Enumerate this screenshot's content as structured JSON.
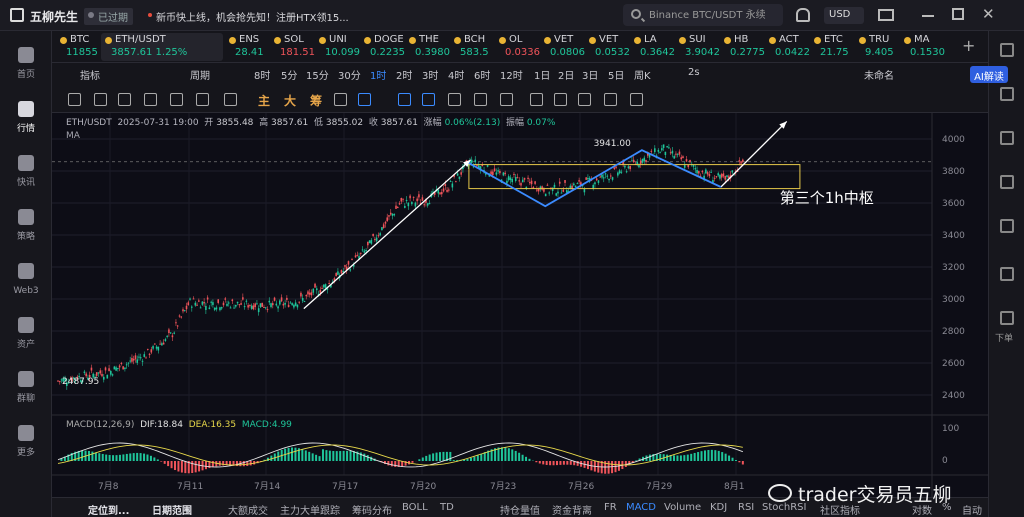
{
  "app": {
    "title": "五柳先生",
    "expired": "已过期",
    "news": "新币快上线，机会抢先知！注册HTX领15...",
    "search_placeholder": "Binance BTC/USDT 永续",
    "currency": "USD"
  },
  "sidebar": [
    {
      "label": "首页",
      "icon": "home-icon"
    },
    {
      "label": "行情",
      "icon": "chart-bars-icon",
      "active": true
    },
    {
      "label": "快讯",
      "icon": "news-icon"
    },
    {
      "label": "策略",
      "icon": "robot-icon"
    },
    {
      "label": "Web3",
      "icon": "web3-icon"
    },
    {
      "label": "资产",
      "icon": "wallet-icon"
    },
    {
      "label": "群聊",
      "icon": "chat-group-icon"
    },
    {
      "label": "更多",
      "icon": "grid-more-icon"
    }
  ],
  "rightbar": {
    "label": "下单"
  },
  "tickers": [
    {
      "sym": "BTC",
      "price": "11855",
      "dir": "up"
    },
    {
      "sym": "ETH/USDT",
      "price": "3857.61  1.25%",
      "dir": "up",
      "active": true
    },
    {
      "sym": "ENS",
      "price": "28.41",
      "dir": "up"
    },
    {
      "sym": "SOL",
      "price": "181.51",
      "dir": "dn"
    },
    {
      "sym": "UNI",
      "price": "10.099",
      "dir": "up"
    },
    {
      "sym": "DOGE",
      "price": "0.2235",
      "dir": "up"
    },
    {
      "sym": "THE",
      "price": "0.3980",
      "dir": "up"
    },
    {
      "sym": "BCH",
      "price": "583.5",
      "dir": "up"
    },
    {
      "sym": "OL",
      "price": "0.0336",
      "dir": "dn"
    },
    {
      "sym": "VET",
      "price": "0.0806",
      "dir": "up"
    },
    {
      "sym": "VET",
      "price": "0.0532",
      "dir": "up"
    },
    {
      "sym": "LA",
      "price": "0.3642",
      "dir": "up"
    },
    {
      "sym": "SUI",
      "price": "3.9042",
      "dir": "up"
    },
    {
      "sym": "HB",
      "price": "0.2775",
      "dir": "up"
    },
    {
      "sym": "ACT",
      "price": "0.0422",
      "dir": "up"
    },
    {
      "sym": "ETC",
      "price": "21.75",
      "dir": "up"
    },
    {
      "sym": "TRU",
      "price": "9.405",
      "dir": "up"
    },
    {
      "sym": "MA",
      "price": "0.1530",
      "dir": "up"
    }
  ],
  "toolbar": {
    "items": [
      "指标",
      "周期",
      "8时",
      "5分",
      "15分",
      "30分",
      "1时",
      "2时",
      "3时",
      "4时",
      "6时",
      "12时",
      "1日",
      "2日",
      "3日",
      "5日",
      "周K",
      "2s",
      "未命名"
    ],
    "active": "1时",
    "ai": "AI解读"
  },
  "drawbar": {
    "labels": [
      "主",
      "大",
      "筹"
    ]
  },
  "chart": {
    "legend": {
      "pair": "ETH/USDT",
      "time": "2025-07-31 19:00",
      "open_label": "开",
      "open": "3855.48",
      "high_label": "高",
      "high": "3857.61",
      "low_label": "低",
      "low": "3855.02",
      "close_label": "收",
      "close": "3857.61",
      "chg_label": "涨幅",
      "chg": "0.06%(2.13)",
      "amp_label": "振幅",
      "amp": "0.07%"
    },
    "ma": "MA",
    "annotation": "第三个1h中枢",
    "high_label": "3941.00",
    "low_label": "2487.95",
    "macd": {
      "params": "MACD(12,26,9)",
      "dif": "DIF:18.84",
      "dea": "DEA:16.35",
      "macd": "MACD:4.99"
    }
  },
  "chart_data": {
    "type": "candlestick",
    "x_ticks": [
      "7月8",
      "7月11",
      "7月14",
      "7月17",
      "7月20",
      "7月23",
      "7月26",
      "7月29",
      "8月1"
    ],
    "y_ticks": [
      2400,
      2600,
      2800,
      3000,
      3200,
      3400,
      3600,
      3800,
      4000
    ],
    "ylim": [
      2300,
      4100
    ],
    "current_price": 3857.61,
    "high": 3941.0,
    "low": 2487.95,
    "zhongshu_box": [
      3690,
      3840
    ],
    "macd_ticks": [
      0.0,
      100.0
    ],
    "trend": [
      {
        "x": 0.0,
        "y": 2487.95
      },
      {
        "x": 0.06,
        "y": 2550
      },
      {
        "x": 0.1,
        "y": 2650
      },
      {
        "x": 0.13,
        "y": 2780
      },
      {
        "x": 0.15,
        "y": 2980
      },
      {
        "x": 0.2,
        "y": 2970
      },
      {
        "x": 0.25,
        "y": 2960
      },
      {
        "x": 0.28,
        "y": 3000
      },
      {
        "x": 0.31,
        "y": 3100
      },
      {
        "x": 0.35,
        "y": 3300
      },
      {
        "x": 0.39,
        "y": 3600
      },
      {
        "x": 0.42,
        "y": 3620
      },
      {
        "x": 0.445,
        "y": 3700
      },
      {
        "x": 0.47,
        "y": 3860
      },
      {
        "x": 0.5,
        "y": 3780
      },
      {
        "x": 0.56,
        "y": 3680
      },
      {
        "x": 0.6,
        "y": 3720
      },
      {
        "x": 0.64,
        "y": 3800
      },
      {
        "x": 0.69,
        "y": 3941
      },
      {
        "x": 0.73,
        "y": 3800
      },
      {
        "x": 0.76,
        "y": 3740
      },
      {
        "x": 0.78,
        "y": 3857.61
      }
    ]
  },
  "bottombar": {
    "items": [
      "定位到...",
      "日期范围",
      "大额成交",
      "主力大单跟踪",
      "筹码分布",
      "BOLL",
      "TD",
      "持仓量值",
      "资金背离",
      "FR",
      "MACD",
      "Volume",
      "KDJ",
      "RSI",
      "StochRSI",
      "社区指标",
      "对数",
      "%",
      "自动"
    ],
    "active": "MACD"
  },
  "watermark": "trader交易员五柳"
}
